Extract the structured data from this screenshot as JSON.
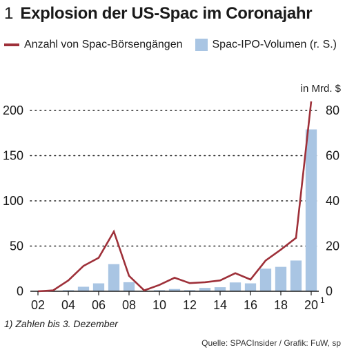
{
  "header": {
    "number": "1",
    "title": "Explosion der US-Spac im Coronajahr"
  },
  "legend": {
    "line_label": "Anzahl von Spac-Börsengängen",
    "bar_label": "Spac-IPO-Volumen (r. S.)"
  },
  "unit_label": "in Mrd. $",
  "footnote": "1) Zahlen bis 3. Dezember",
  "source": "Quelle: SPACInsider / Grafik: FuW, sp",
  "chart_data": {
    "type": "bar+line",
    "x": [
      2002,
      2003,
      2004,
      2005,
      2006,
      2007,
      2008,
      2009,
      2010,
      2011,
      2012,
      2013,
      2014,
      2015,
      2016,
      2017,
      2018,
      2019,
      2020
    ],
    "x_tick_labels": [
      "02",
      "04",
      "06",
      "08",
      "10",
      "12",
      "14",
      "16",
      "18",
      "20"
    ],
    "x_tick_superscript": "1",
    "series": [
      {
        "name": "Anzahl von Spac-Börsengängen",
        "kind": "line",
        "axis": "left",
        "values": [
          0,
          1,
          12,
          28,
          37,
          66,
          17,
          1,
          7,
          15,
          9,
          10,
          12,
          20,
          13,
          34,
          46,
          59,
          210
        ]
      },
      {
        "name": "Spac-IPO-Volumen (r. S.)",
        "kind": "bar",
        "axis": "right",
        "values": [
          0,
          0.1,
          0.5,
          2.0,
          3.5,
          12.0,
          4.0,
          0.05,
          0.5,
          1.0,
          0.5,
          1.5,
          1.8,
          3.9,
          3.5,
          10.0,
          10.8,
          13.6,
          71.6
        ]
      }
    ],
    "y_left": {
      "lim": [
        0,
        200
      ],
      "ticks": [
        0,
        50,
        100,
        150,
        200
      ]
    },
    "y_right": {
      "lim": [
        0,
        80
      ],
      "ticks": [
        0,
        20,
        40,
        60,
        80
      ]
    },
    "colors": {
      "line": "#9e3039",
      "bar": "#a9c5e3",
      "grid": "#222222"
    },
    "grid": true
  }
}
